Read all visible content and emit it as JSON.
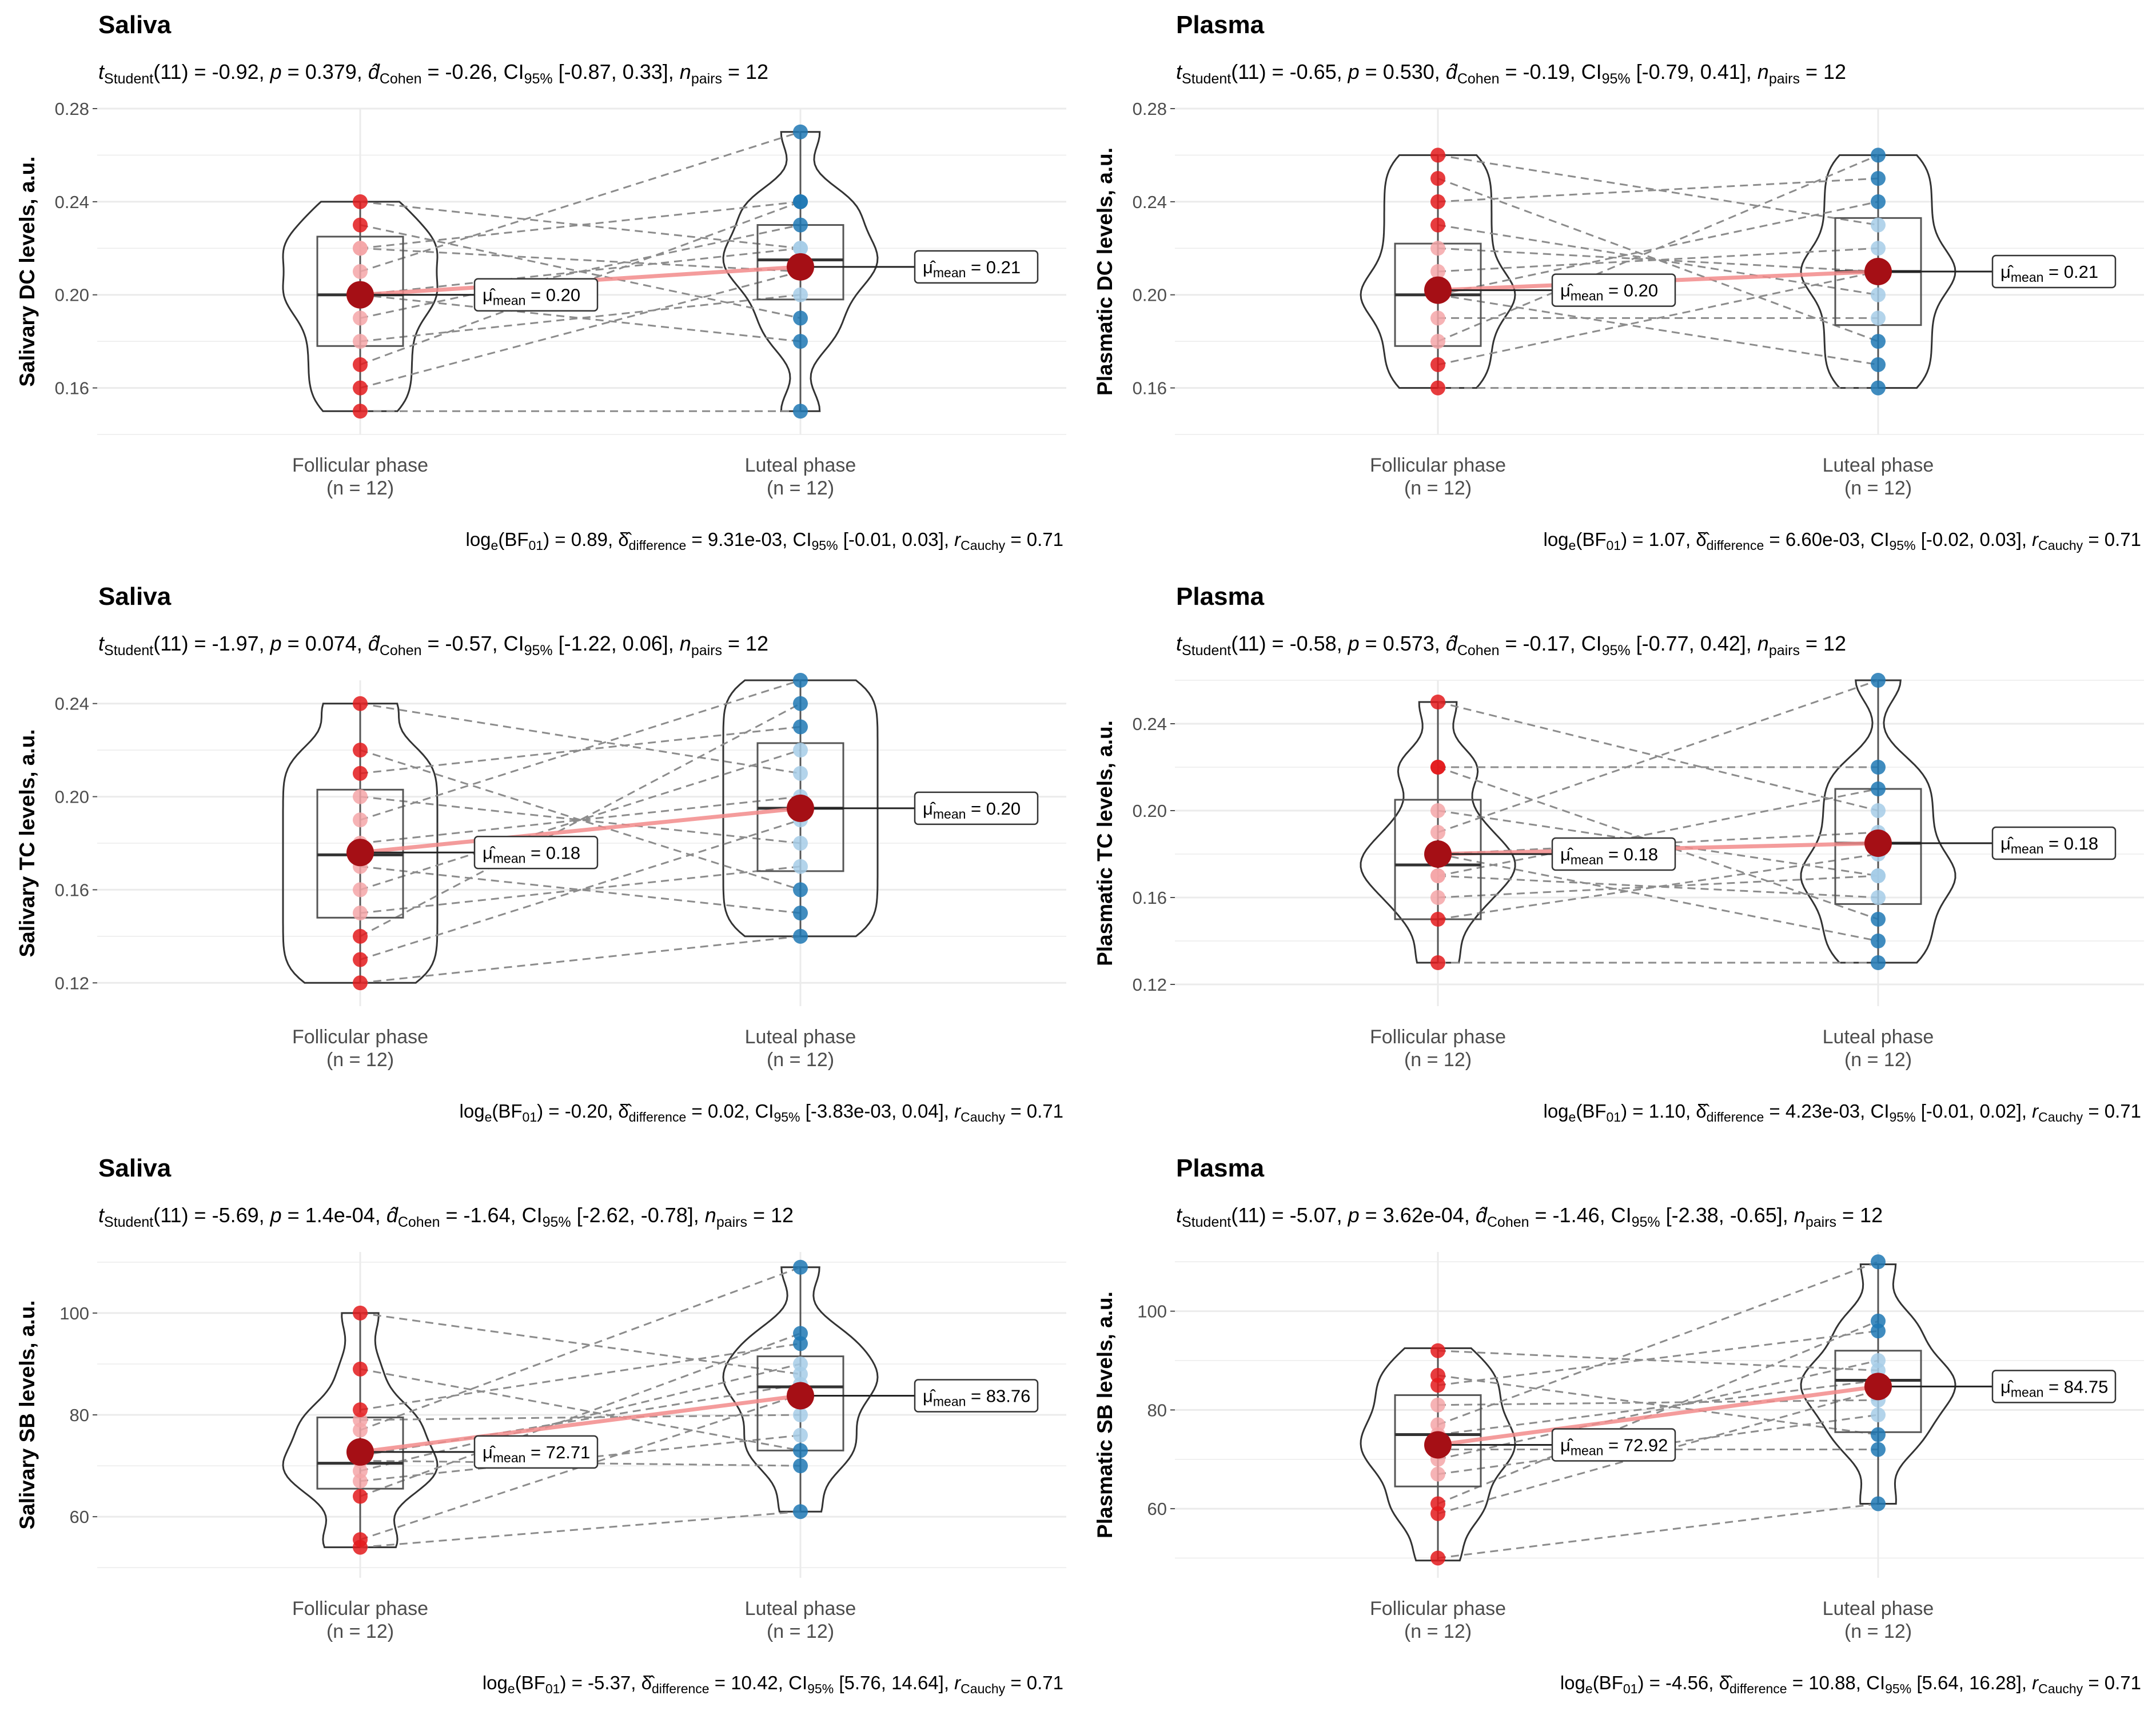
{
  "figure": {
    "x_categories": [
      "Follicular phase",
      "Luteal phase"
    ],
    "n_labels": [
      "(n = 12)",
      "(n = 12)"
    ],
    "mu_symbol": "μ̂",
    "mean_sub": "mean",
    "colors": {
      "follicular": "#e31a1c",
      "follicular_light": "#f4a6a8",
      "luteal": "#1f78b4",
      "luteal_light": "#a6cde8",
      "mean_point": "#a50f15",
      "mean_line": "#f28b8b",
      "grid": "#ebebeb",
      "violin": "#333333",
      "pair_line": "#8c8c8c"
    }
  },
  "chart_data": [
    {
      "type": "violin",
      "title": "Saliva",
      "subtitle": {
        "t": "(11) = -0.92,",
        "p": " = 0.379,",
        "d": " = -0.26, CI",
        "ci": " [-0.87, 0.33],",
        "n": " = 12"
      },
      "ylabel": "Salivary DC levels, a.u.",
      "ylim": [
        0.14,
        0.28
      ],
      "yticks": [
        "0.16",
        "0.20",
        "0.24",
        "0.28"
      ],
      "ytick_values": [
        0.16,
        0.2,
        0.24,
        0.28
      ],
      "violin_range": [
        [
          0.15,
          0.24
        ],
        [
          0.15,
          0.27
        ]
      ],
      "box": [
        [
          0.178,
          0.2,
          0.225
        ],
        [
          0.198,
          0.215,
          0.23
        ]
      ],
      "series": [
        {
          "name": "Follicular phase",
          "values": [
            0.15,
            0.16,
            0.17,
            0.18,
            0.19,
            0.2,
            0.2,
            0.21,
            0.22,
            0.22,
            0.23,
            0.24
          ]
        },
        {
          "name": "Luteal phase",
          "values": [
            0.15,
            0.18,
            0.19,
            0.2,
            0.21,
            0.21,
            0.22,
            0.22,
            0.23,
            0.24,
            0.24,
            0.27
          ]
        }
      ],
      "means": [
        0.2,
        0.212
      ],
      "mean_labels": [
        " = 0.20",
        " = 0.21"
      ],
      "caption": {
        "bf": " = 0.89, ",
        "delta": " = 9.31e-03, CI",
        "ci": " [-0.01, 0.03], ",
        "r": " = 0.71"
      }
    },
    {
      "type": "violin",
      "title": "Plasma",
      "subtitle": {
        "t": "(11) = -0.65,",
        "p": " = 0.530,",
        "d": " = -0.19, CI",
        "ci": " [-0.79, 0.41],",
        "n": " = 12"
      },
      "ylabel": "Plasmatic DC levels, a.u.",
      "ylim": [
        0.14,
        0.28
      ],
      "yticks": [
        "0.16",
        "0.20",
        "0.24",
        "0.28"
      ],
      "ytick_values": [
        0.16,
        0.2,
        0.24,
        0.28
      ],
      "violin_range": [
        [
          0.16,
          0.26
        ],
        [
          0.16,
          0.26
        ]
      ],
      "box": [
        [
          0.178,
          0.2,
          0.222
        ],
        [
          0.187,
          0.21,
          0.233
        ]
      ],
      "series": [
        {
          "name": "Follicular phase",
          "values": [
            0.16,
            0.17,
            0.18,
            0.19,
            0.2,
            0.2,
            0.21,
            0.22,
            0.23,
            0.24,
            0.25,
            0.26
          ]
        },
        {
          "name": "Luteal phase",
          "values": [
            0.16,
            0.17,
            0.18,
            0.19,
            0.2,
            0.21,
            0.22,
            0.23,
            0.24,
            0.25,
            0.26,
            0.21
          ]
        }
      ],
      "means": [
        0.202,
        0.21
      ],
      "mean_labels": [
        " = 0.20",
        " = 0.21"
      ],
      "caption": {
        "bf": " = 1.07, ",
        "delta": " = 6.60e-03, CI",
        "ci": " [-0.02, 0.03], ",
        "r": " = 0.71"
      }
    },
    {
      "type": "violin",
      "title": "Saliva",
      "subtitle": {
        "t": "(11) = -1.97,",
        "p": " = 0.074,",
        "d": " = -0.57, CI",
        "ci": " [-1.22, 0.06],",
        "n": " = 12"
      },
      "ylabel": "Salivary TC levels, a.u.",
      "ylim": [
        0.11,
        0.25
      ],
      "yticks": [
        "0.12",
        "0.16",
        "0.20",
        "0.24"
      ],
      "ytick_values": [
        0.12,
        0.16,
        0.2,
        0.24
      ],
      "violin_range": [
        [
          0.12,
          0.24
        ],
        [
          0.14,
          0.25
        ]
      ],
      "box": [
        [
          0.148,
          0.175,
          0.203
        ],
        [
          0.168,
          0.195,
          0.223
        ]
      ],
      "series": [
        {
          "name": "Follicular phase",
          "values": [
            0.12,
            0.13,
            0.14,
            0.15,
            0.16,
            0.17,
            0.18,
            0.19,
            0.2,
            0.21,
            0.22,
            0.24
          ]
        },
        {
          "name": "Luteal phase",
          "values": [
            0.14,
            0.15,
            0.16,
            0.17,
            0.18,
            0.19,
            0.2,
            0.21,
            0.22,
            0.23,
            0.24,
            0.25
          ]
        }
      ],
      "means": [
        0.176,
        0.195
      ],
      "mean_labels": [
        " = 0.18",
        " = 0.20"
      ],
      "caption": {
        "bf": " = -0.20, ",
        "delta": " = 0.02, CI",
        "ci": " [-3.83e-03, 0.04], ",
        "r": " = 0.71"
      }
    },
    {
      "type": "violin",
      "title": "Plasma",
      "subtitle": {
        "t": "(11) = -0.58,",
        "p": " = 0.573,",
        "d": " = -0.17, CI",
        "ci": " [-0.77, 0.42],",
        "n": " = 12"
      },
      "ylabel": "Plasmatic TC levels, a.u.",
      "ylim": [
        0.11,
        0.26
      ],
      "yticks": [
        "0.12",
        "0.16",
        "0.20",
        "0.24"
      ],
      "ytick_values": [
        0.12,
        0.16,
        0.2,
        0.24
      ],
      "violin_range": [
        [
          0.13,
          0.25
        ],
        [
          0.13,
          0.26
        ]
      ],
      "box": [
        [
          0.15,
          0.175,
          0.205
        ],
        [
          0.157,
          0.185,
          0.21
        ]
      ],
      "series": [
        {
          "name": "Follicular phase",
          "values": [
            0.13,
            0.15,
            0.16,
            0.17,
            0.17,
            0.18,
            0.18,
            0.19,
            0.2,
            0.22,
            0.22,
            0.25
          ]
        },
        {
          "name": "Luteal phase",
          "values": [
            0.13,
            0.14,
            0.15,
            0.16,
            0.17,
            0.18,
            0.19,
            0.2,
            0.21,
            0.22,
            0.17,
            0.26
          ]
        }
      ],
      "means": [
        0.18,
        0.185
      ],
      "mean_labels": [
        " = 0.18",
        " = 0.18"
      ],
      "caption": {
        "bf": " = 1.10, ",
        "delta": " = 4.23e-03, CI",
        "ci": " [-0.01, 0.02], ",
        "r": " = 0.71"
      }
    },
    {
      "type": "violin",
      "title": "Saliva",
      "subtitle": {
        "t": "(11) = -5.69,",
        "p": " = 1.4e-04,",
        "d": " = -1.64, CI",
        "ci": " [-2.62, -0.78],",
        "n": " = 12"
      },
      "ylabel": "Salivary SB levels, a.u.",
      "ylim": [
        48,
        112
      ],
      "yticks": [
        "60",
        "80",
        "100"
      ],
      "ytick_values": [
        60,
        80,
        100
      ],
      "violin_range": [
        [
          54,
          100
        ],
        [
          61,
          109
        ]
      ],
      "box": [
        [
          65.5,
          70.5,
          79.5
        ],
        [
          73,
          85.5,
          91.5
        ]
      ],
      "series": [
        {
          "name": "Follicular phase",
          "values": [
            54,
            55.5,
            64,
            67,
            69,
            71,
            72,
            77,
            79,
            81,
            89,
            100
          ]
        },
        {
          "name": "Luteal phase",
          "values": [
            61,
            70,
            73,
            76,
            80,
            84,
            86,
            88,
            90,
            94,
            96,
            109
          ]
        }
      ],
      "means": [
        72.71,
        83.76
      ],
      "mean_labels": [
        " = 72.71",
        " = 83.76"
      ],
      "caption": {
        "bf": " = -5.37, ",
        "delta": " = 10.42, CI",
        "ci": " [5.76, 14.64], ",
        "r": " = 0.71"
      }
    },
    {
      "type": "violin",
      "title": "Plasma",
      "subtitle": {
        "t": "(11) = -5.07,",
        "p": " = 3.62e-04,",
        "d": " = -1.46, CI",
        "ci": " [-2.38, -0.65],",
        "n": " = 12"
      },
      "ylabel": "Plasmatic SB levels, a.u.",
      "ylim": [
        46,
        112
      ],
      "yticks": [
        "60",
        "80",
        "100"
      ],
      "ytick_values": [
        60,
        80,
        100
      ],
      "violin_range": [
        [
          49.5,
          92.5
        ],
        [
          61,
          109.5
        ]
      ],
      "box": [
        [
          64.5,
          75,
          83
        ],
        [
          75.5,
          86,
          92
        ]
      ],
      "series": [
        {
          "name": "Follicular phase",
          "values": [
            50,
            59,
            61,
            67,
            70,
            72,
            75,
            77,
            81,
            85,
            87,
            92
          ]
        },
        {
          "name": "Luteal phase",
          "values": [
            61,
            72,
            75,
            79,
            82,
            84,
            86,
            88,
            90,
            96,
            98,
            110
          ]
        }
      ],
      "means": [
        72.92,
        84.75
      ],
      "mean_labels": [
        " = 72.92",
        " = 84.75"
      ],
      "caption": {
        "bf": " = -4.56, ",
        "delta": " = 10.88, CI",
        "ci": " [5.64, 16.28], ",
        "r": " = 0.71"
      }
    }
  ]
}
